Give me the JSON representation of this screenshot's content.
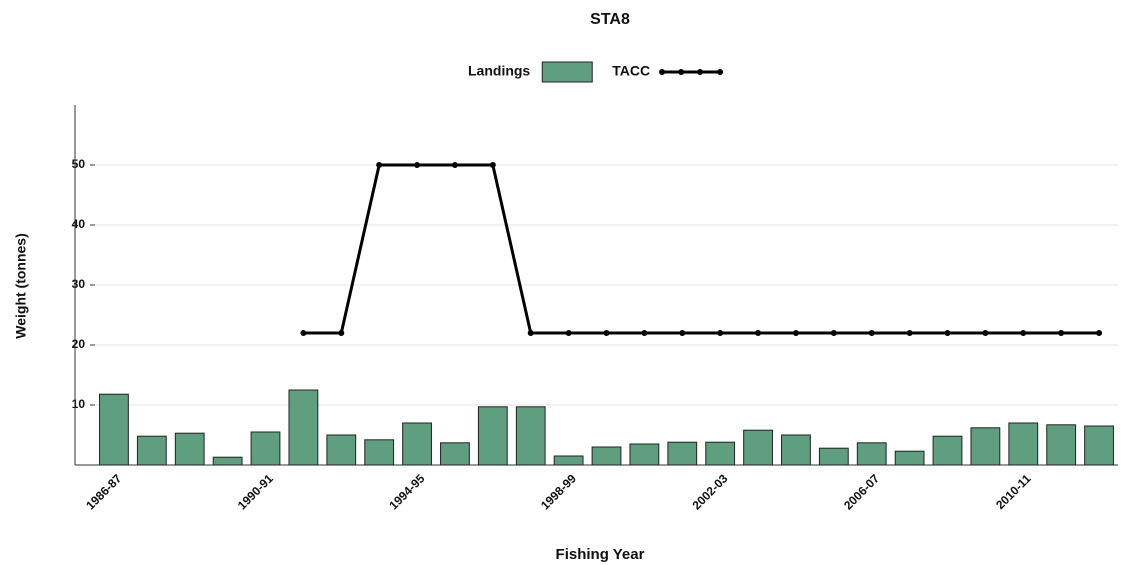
{
  "chart_data": {
    "type": "bar",
    "title": "STA8",
    "x_label": "Fishing Year",
    "y_label": "Weight (tonnes)",
    "categories": [
      "1986-87",
      null,
      null,
      null,
      "1990-91",
      null,
      null,
      null,
      "1994-95",
      null,
      null,
      null,
      "1998-99",
      null,
      null,
      null,
      "2002-03",
      null,
      null,
      null,
      "2006-07",
      null,
      null,
      null,
      "2010-11",
      null,
      null
    ],
    "series": [
      {
        "name": "Landings",
        "type": "bar",
        "color": "#5f9e7f",
        "values": [
          11.8,
          4.8,
          5.3,
          1.3,
          5.5,
          12.5,
          5.0,
          4.2,
          7.0,
          3.7,
          9.7,
          9.7,
          1.5,
          3.0,
          3.5,
          3.8,
          3.8,
          5.8,
          5.0,
          2.8,
          3.7,
          2.3,
          4.8,
          6.2,
          7.0,
          6.7,
          6.5
        ]
      },
      {
        "name": "TACC",
        "type": "line",
        "color": "#000000",
        "values": [
          null,
          null,
          null,
          null,
          null,
          22,
          22,
          50,
          50,
          50,
          50,
          22,
          22,
          22,
          22,
          22,
          22,
          22,
          22,
          22,
          22,
          22,
          22,
          22,
          22,
          22,
          22
        ]
      }
    ],
    "ylim": [
      0,
      60
    ],
    "yticks": [
      10,
      20,
      30,
      40,
      50
    ],
    "grid": true,
    "legend": "top"
  }
}
